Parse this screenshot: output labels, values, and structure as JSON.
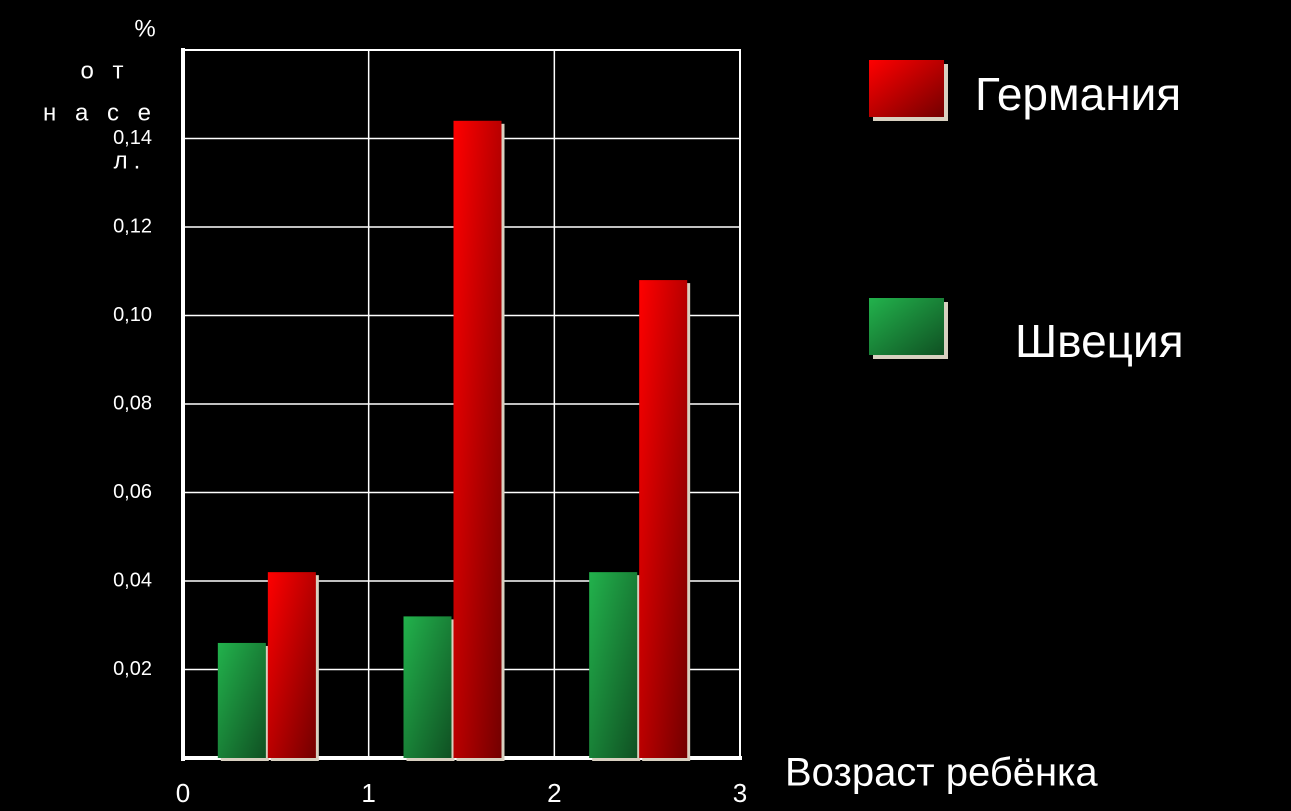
{
  "chart_data": {
    "type": "bar",
    "ylabel": [
      "%",
      "о т",
      "н а с е",
      "л."
    ],
    "xlabel": "Возраст ребёнка",
    "x": [
      0.5,
      1.5,
      2.5
    ],
    "xlim": [
      0,
      3
    ],
    "xticks": [
      0,
      1,
      2,
      3
    ],
    "ylim": [
      0,
      0.16
    ],
    "yticks": [
      {
        "value": 0.02,
        "label": "0,02"
      },
      {
        "value": 0.04,
        "label": "0,04"
      },
      {
        "value": 0.06,
        "label": "0,06"
      },
      {
        "value": 0.08,
        "label": "0,08"
      },
      {
        "value": 0.1,
        "label": "0,10"
      },
      {
        "value": 0.12,
        "label": "0,12"
      },
      {
        "value": 0.14,
        "label": "0,14"
      }
    ],
    "grid": true,
    "series": [
      {
        "name": "Швеция",
        "color": "#22b24c",
        "values": [
          0.026,
          0.032,
          0.042
        ]
      },
      {
        "name": "Германия",
        "color": "#ff0000",
        "values": [
          0.042,
          0.144,
          0.108
        ]
      }
    ]
  }
}
